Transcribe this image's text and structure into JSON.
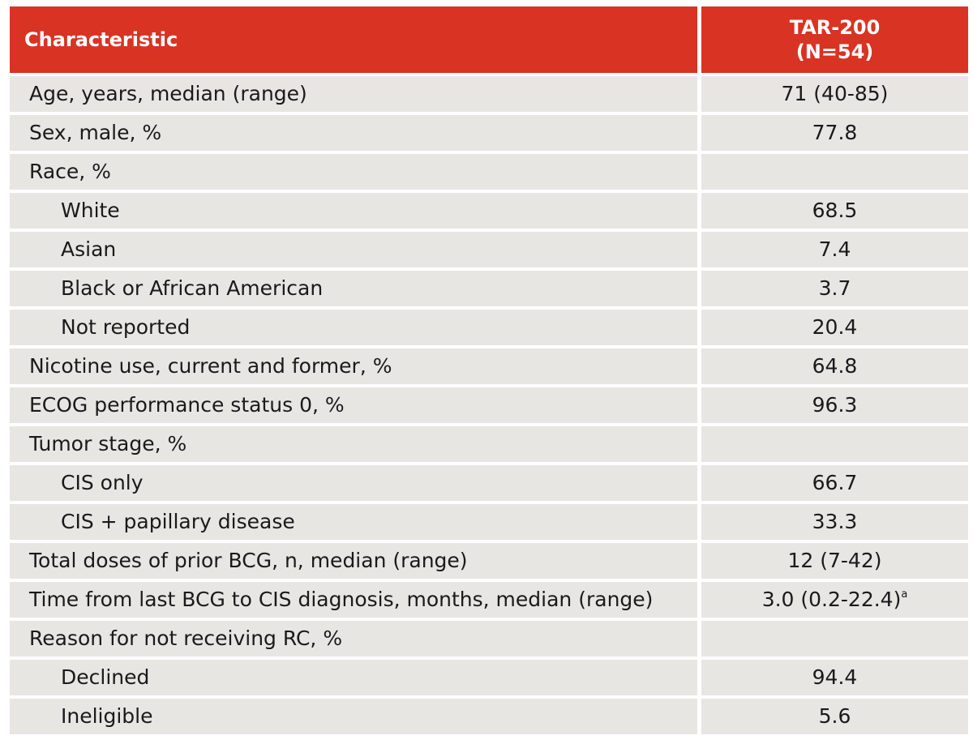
{
  "table": {
    "headers": {
      "characteristic": "Characteristic",
      "arm_line1": "TAR-200",
      "arm_line2": "(N=54)"
    },
    "rows": [
      {
        "label": "Age, years, median (range)",
        "value": "71 (40-85)",
        "indent": false
      },
      {
        "label": "Sex, male, %",
        "value": "77.8",
        "indent": false
      },
      {
        "label": "Race, %",
        "value": "",
        "indent": false
      },
      {
        "label": "White",
        "value": "68.5",
        "indent": true
      },
      {
        "label": "Asian",
        "value": "7.4",
        "indent": true
      },
      {
        "label": "Black or African American",
        "value": "3.7",
        "indent": true
      },
      {
        "label": "Not reported",
        "value": "20.4",
        "indent": true
      },
      {
        "label": "Nicotine use, current and former, %",
        "value": "64.8",
        "indent": false
      },
      {
        "label": "ECOG performance status 0, %",
        "value": "96.3",
        "indent": false
      },
      {
        "label": "Tumor stage, %",
        "value": "",
        "indent": false
      },
      {
        "label": "CIS only",
        "value": "66.7",
        "indent": true
      },
      {
        "label": "CIS + papillary disease",
        "value": "33.3",
        "indent": true
      },
      {
        "label": "Total doses of prior BCG, n, median (range)",
        "value": "12 (7-42)",
        "indent": false
      },
      {
        "label": "Time from last BCG to CIS diagnosis, months, median (range)",
        "value": "3.0 (0.2-22.4)",
        "footnote": "a",
        "indent": false
      },
      {
        "label": "Reason for not receiving RC, %",
        "value": "",
        "indent": false
      },
      {
        "label": "Declined",
        "value": "94.4",
        "indent": true
      },
      {
        "label": "Ineligible",
        "value": "5.6",
        "indent": true
      }
    ]
  },
  "colors": {
    "header_bg": "#d93323",
    "header_text": "#ffffff",
    "row_bg": "#e8e6e3",
    "row_text": "#1a1a1a"
  }
}
